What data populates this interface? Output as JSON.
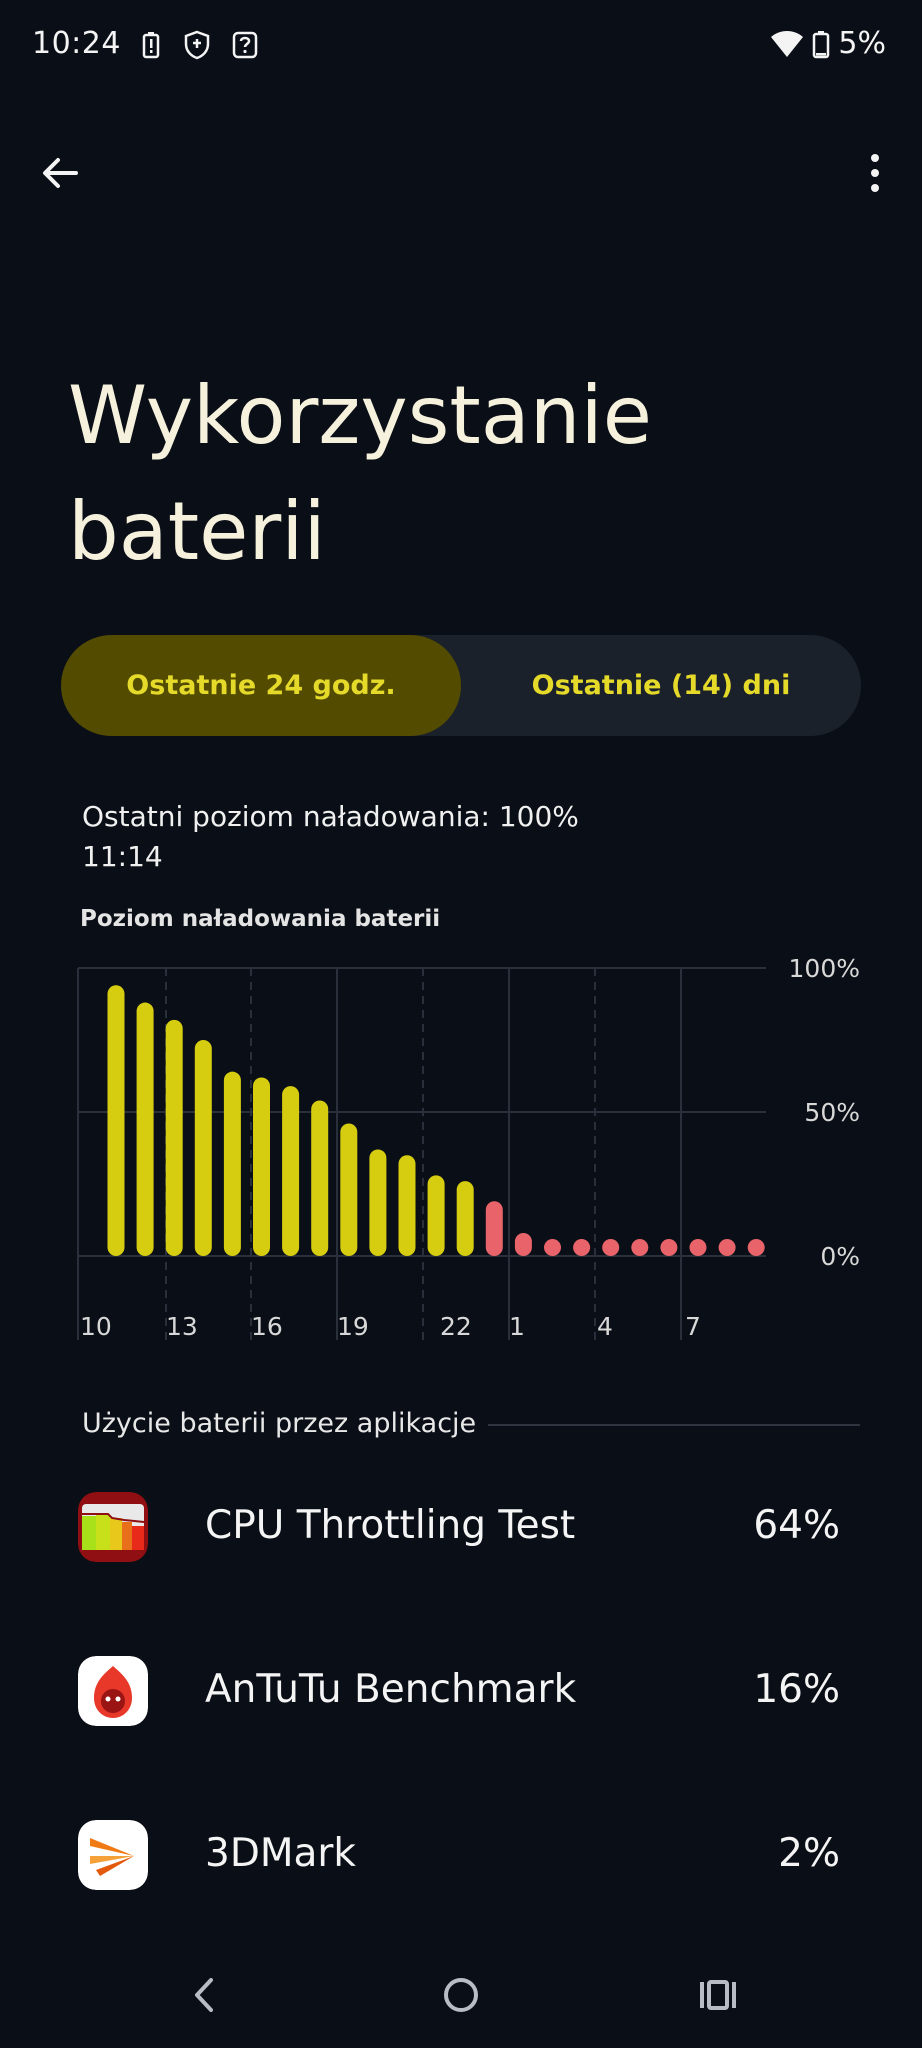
{
  "status_bar": {
    "time": "10:24",
    "left_icons": [
      "battery-alert-icon",
      "shield-icon",
      "help-box-icon"
    ],
    "right_icons": [
      "wifi-icon",
      "battery-icon"
    ],
    "battery_text": "5%"
  },
  "top_bar": {
    "back_icon": "arrow-left-icon",
    "menu_icon": "more-vertical-icon"
  },
  "page": {
    "title_line1": "Wykorzystanie",
    "title_line2": "baterii"
  },
  "tabs": {
    "active": "Ostatnie 24 godz.",
    "inactive": "Ostatnie (14) dni",
    "accent_color": "#e5da2a",
    "active_bg": "#524b00"
  },
  "last_charge": {
    "label": "Ostatni poziom naładowania: 100%",
    "time": "11:14"
  },
  "chart_title": "Poziom naładowania baterii",
  "chart_data": {
    "type": "bar",
    "title": "Poziom naładowania baterii",
    "y_tick_labels": [
      "100%",
      "50%",
      "0%"
    ],
    "x_tick_labels": [
      "10",
      "13",
      "16",
      "19",
      "22",
      "1",
      "4",
      "7"
    ],
    "ylim": [
      0,
      100
    ],
    "values": [
      94,
      88,
      82,
      75,
      64,
      62,
      59,
      54,
      46,
      37,
      35,
      28,
      26,
      19,
      8,
      5,
      5,
      5,
      5,
      5,
      5,
      5,
      5
    ],
    "normal_color": "#d6cc10",
    "low_color": "#e8646a",
    "low_threshold": 20
  },
  "apps_section": {
    "heading": "Użycie baterii przez aplikacje",
    "items": [
      {
        "name": "CPU Throttling Test",
        "percent": "64%",
        "icon": "cpu-throttling-icon"
      },
      {
        "name": "AnTuTu Benchmark",
        "percent": "16%",
        "icon": "antutu-icon"
      },
      {
        "name": "3DMark",
        "percent": "2%",
        "icon": "3dmark-icon"
      }
    ]
  },
  "nav_bar": {
    "icons": [
      "nav-back-icon",
      "nav-home-icon",
      "nav-recents-icon"
    ]
  }
}
